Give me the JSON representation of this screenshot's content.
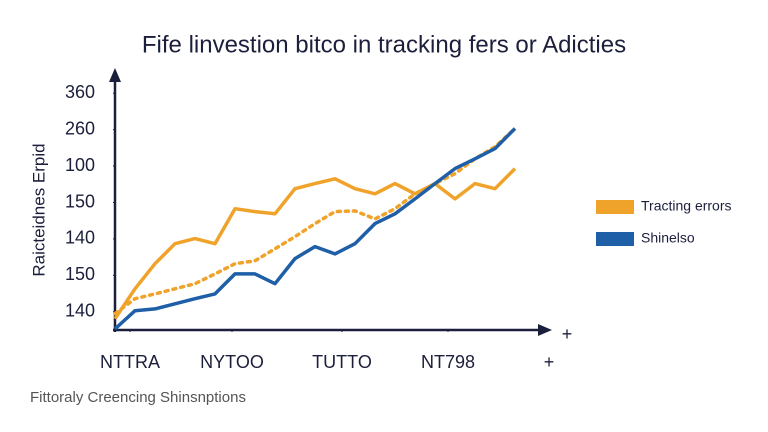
{
  "chart_data": {
    "type": "line",
    "title": "Fife linvestion bitco in tracking fers or Adicties",
    "ylabel": "Raicteidnes Erpid",
    "footnote": "Fittoraly Creencing Shinsnptions",
    "x": [
      0,
      1,
      2,
      3,
      4,
      5,
      6,
      7,
      8,
      9,
      10,
      11,
      12,
      13,
      14,
      15,
      16,
      17,
      18,
      19,
      20
    ],
    "xlim": [
      0,
      21.65
    ],
    "xticks": [
      {
        "value": 0.75,
        "label": "NTTRA"
      },
      {
        "value": 5.85,
        "label": "NYTOO"
      },
      {
        "value": 11.35,
        "label": "TUTTO"
      },
      {
        "value": 16.65,
        "label": "NT798"
      }
    ],
    "ylim": [
      -0.5,
      6.5
    ],
    "yticks": [
      {
        "value": 0,
        "label": "140"
      },
      {
        "value": 1,
        "label": "150"
      },
      {
        "value": 2,
        "label": "140"
      },
      {
        "value": 3,
        "label": "150"
      },
      {
        "value": 4,
        "label": "100"
      },
      {
        "value": 5,
        "label": "260"
      },
      {
        "value": 6,
        "label": "360"
      }
    ],
    "series": [
      {
        "name": "Tracting errors",
        "color": "#f0a32a",
        "values": [
          -0.19,
          0.63,
          1.32,
          1.87,
          2.01,
          1.87,
          2.83,
          2.75,
          2.69,
          3.38,
          3.52,
          3.65,
          3.38,
          3.24,
          3.52,
          3.24,
          3.52,
          3.1,
          3.52,
          3.38,
          3.93
        ]
      },
      {
        "color": "#f0a32a",
        "dashed": true,
        "values": [
          -0.05,
          0.36,
          0.49,
          0.63,
          0.77,
          1.04,
          1.32,
          1.4,
          1.73,
          2.06,
          2.42,
          2.75,
          2.77,
          2.55,
          2.83,
          3.24,
          3.52,
          3.79,
          4.2,
          4.53,
          5.03
        ]
      },
      {
        "name": "Shinelso",
        "color": "#1f5fa8",
        "values": [
          -0.47,
          0.03,
          0.08,
          0.22,
          0.36,
          0.49,
          1.04,
          1.04,
          0.77,
          1.46,
          1.79,
          1.59,
          1.87,
          2.42,
          2.69,
          3.1,
          3.52,
          3.93,
          4.2,
          4.48,
          5.03
        ]
      }
    ]
  }
}
